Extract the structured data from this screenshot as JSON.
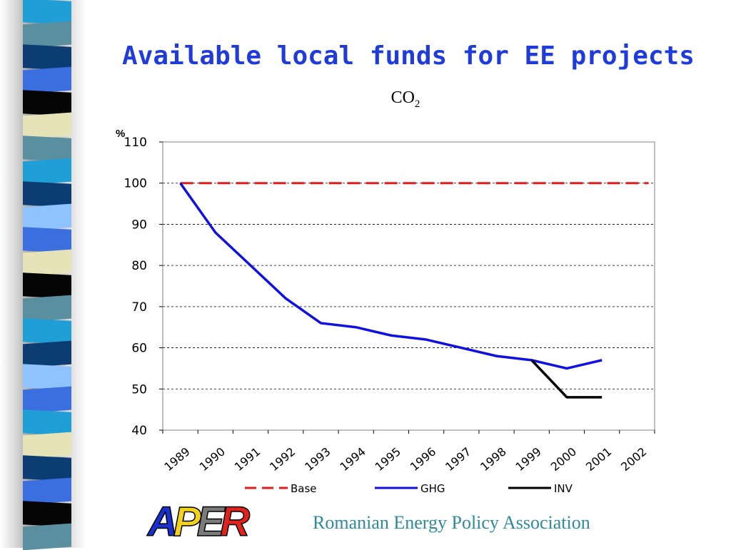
{
  "slide": {
    "title": "Available local funds for EE projects",
    "footer": "Romanian Energy Policy Association",
    "logo_text": "APER",
    "logo_colors": [
      "#1a2fd0",
      "#f2d21a",
      "#7b7b7b",
      "#e0221c"
    ]
  },
  "stripes": [
    {
      "color": "#1f9fd6"
    },
    {
      "color": "#5a8fa0"
    },
    {
      "color": "#0b3d73"
    },
    {
      "color": "#3b6fe0"
    },
    {
      "color": "#050505"
    },
    {
      "color": "#e6e3b8"
    },
    {
      "color": "#5a8fa0"
    },
    {
      "color": "#1f9fd6"
    },
    {
      "color": "#0b3d73"
    },
    {
      "color": "#8fc3ff"
    },
    {
      "color": "#3b6fe0"
    },
    {
      "color": "#e6e3b8"
    },
    {
      "color": "#050505"
    },
    {
      "color": "#5a8fa0"
    },
    {
      "color": "#1f9fd6"
    },
    {
      "color": "#0b3d73"
    },
    {
      "color": "#8fc3ff"
    },
    {
      "color": "#3b6fe0"
    },
    {
      "color": "#1f9fd6"
    },
    {
      "color": "#e6e3b8"
    },
    {
      "color": "#0b3d73"
    },
    {
      "color": "#3b6fe0"
    },
    {
      "color": "#050505"
    },
    {
      "color": "#5a8fa0"
    }
  ],
  "chart_data": {
    "type": "line",
    "title": "CO",
    "title_subscript": "2",
    "ylabel": "%",
    "xlabel": "",
    "ylim": [
      40,
      110
    ],
    "yticks": [
      "40",
      "50",
      "60",
      "70",
      "80",
      "90",
      "100",
      "110"
    ],
    "categories": [
      "1989",
      "1990",
      "1991",
      "1992",
      "1993",
      "1994",
      "1995",
      "1996",
      "1997",
      "1998",
      "1999",
      "2000",
      "2001",
      "2002"
    ],
    "grid": true,
    "legend_position": "bottom",
    "series": [
      {
        "name": "Base",
        "color": "#e21b1b",
        "style": "dashed",
        "x": [
          1989,
          2002
        ],
        "y": [
          100,
          100
        ]
      },
      {
        "name": "GHG",
        "color": "#1010e0",
        "style": "solid",
        "x": [
          1989,
          1990,
          1991,
          1992,
          1993,
          1994,
          1995,
          1996,
          1997,
          1998,
          1999,
          2000,
          2001
        ],
        "y": [
          100,
          88,
          80,
          72,
          66,
          65,
          63,
          62,
          60,
          58,
          57,
          55,
          57
        ]
      },
      {
        "name": "INV",
        "color": "#000000",
        "style": "solid",
        "x": [
          1999,
          2000,
          2001
        ],
        "y": [
          57,
          48,
          48
        ]
      }
    ]
  }
}
